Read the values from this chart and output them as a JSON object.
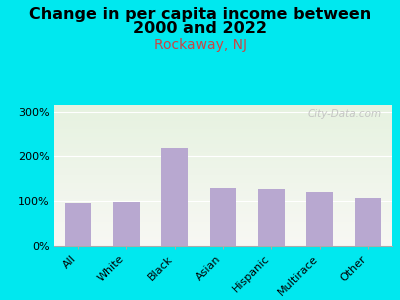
{
  "title_line1": "Change in per capita income between",
  "title_line2": "2000 and 2022",
  "subtitle": "Rockaway, NJ",
  "categories": [
    "All",
    "White",
    "Black",
    "Asian",
    "Hispanic",
    "Multirace",
    "Other"
  ],
  "values": [
    97,
    99,
    220,
    130,
    128,
    120,
    108
  ],
  "bar_color": "#b8a8d0",
  "background_outer": "#00e8ef",
  "background_inner_top": "#e6f2e0",
  "background_inner_bottom": "#f8f8f4",
  "title_fontsize": 11.5,
  "subtitle_fontsize": 10,
  "subtitle_color": "#cc4444",
  "tick_label_fontsize": 8,
  "ylabel_ticks": [
    0,
    100,
    200,
    300
  ],
  "ylim": [
    0,
    315
  ],
  "watermark": "City-Data.com",
  "watermark_color": "#c0c0c0"
}
